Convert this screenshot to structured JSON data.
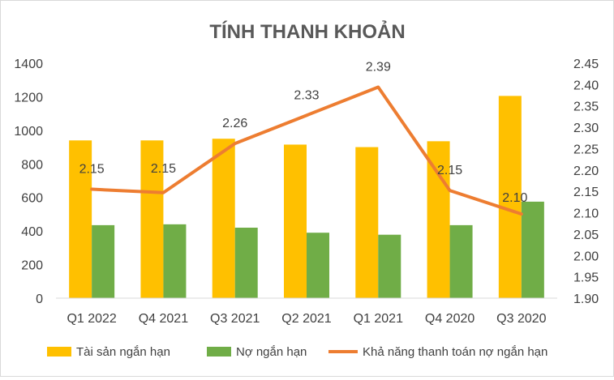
{
  "chart_data": {
    "type": "bar",
    "title": "TÍNH THANH KHOẢN",
    "categories": [
      "Q1 2022",
      "Q4 2021",
      "Q3 2021",
      "Q2 2021",
      "Q1 2021",
      "Q4 2020",
      "Q3 2020"
    ],
    "series": [
      {
        "name": "Tài sản ngắn hạn",
        "type": "bar",
        "axis": "left",
        "color": "#ffc000",
        "values": [
          940,
          940,
          950,
          915,
          900,
          935,
          1205
        ]
      },
      {
        "name": "Nợ ngắn hạn",
        "type": "bar",
        "axis": "left",
        "color": "#70ad47",
        "values": [
          435,
          440,
          420,
          390,
          378,
          435,
          575
        ]
      },
      {
        "name": "Khả năng thanh toán nợ ngắn hạn",
        "type": "line",
        "axis": "right",
        "color": "#ed7d31",
        "values": [
          2.155,
          2.147,
          2.262,
          2.328,
          2.394,
          2.152,
          2.097
        ],
        "labels": [
          "2.15",
          "2.15",
          "2.26",
          "2.33",
          "2.39",
          "2.15",
          "2.10"
        ]
      }
    ],
    "ylim_left": [
      0,
      1400
    ],
    "yticks_left": [
      "0",
      "200",
      "400",
      "600",
      "800",
      "1000",
      "1200",
      "1400"
    ],
    "ylim_right": [
      1.9,
      2.45
    ],
    "yticks_right": [
      "1.90",
      "1.95",
      "2.00",
      "2.05",
      "2.10",
      "2.15",
      "2.20",
      "2.25",
      "2.30",
      "2.35",
      "2.40",
      "2.45"
    ],
    "grid": false,
    "legend": "bottom"
  }
}
